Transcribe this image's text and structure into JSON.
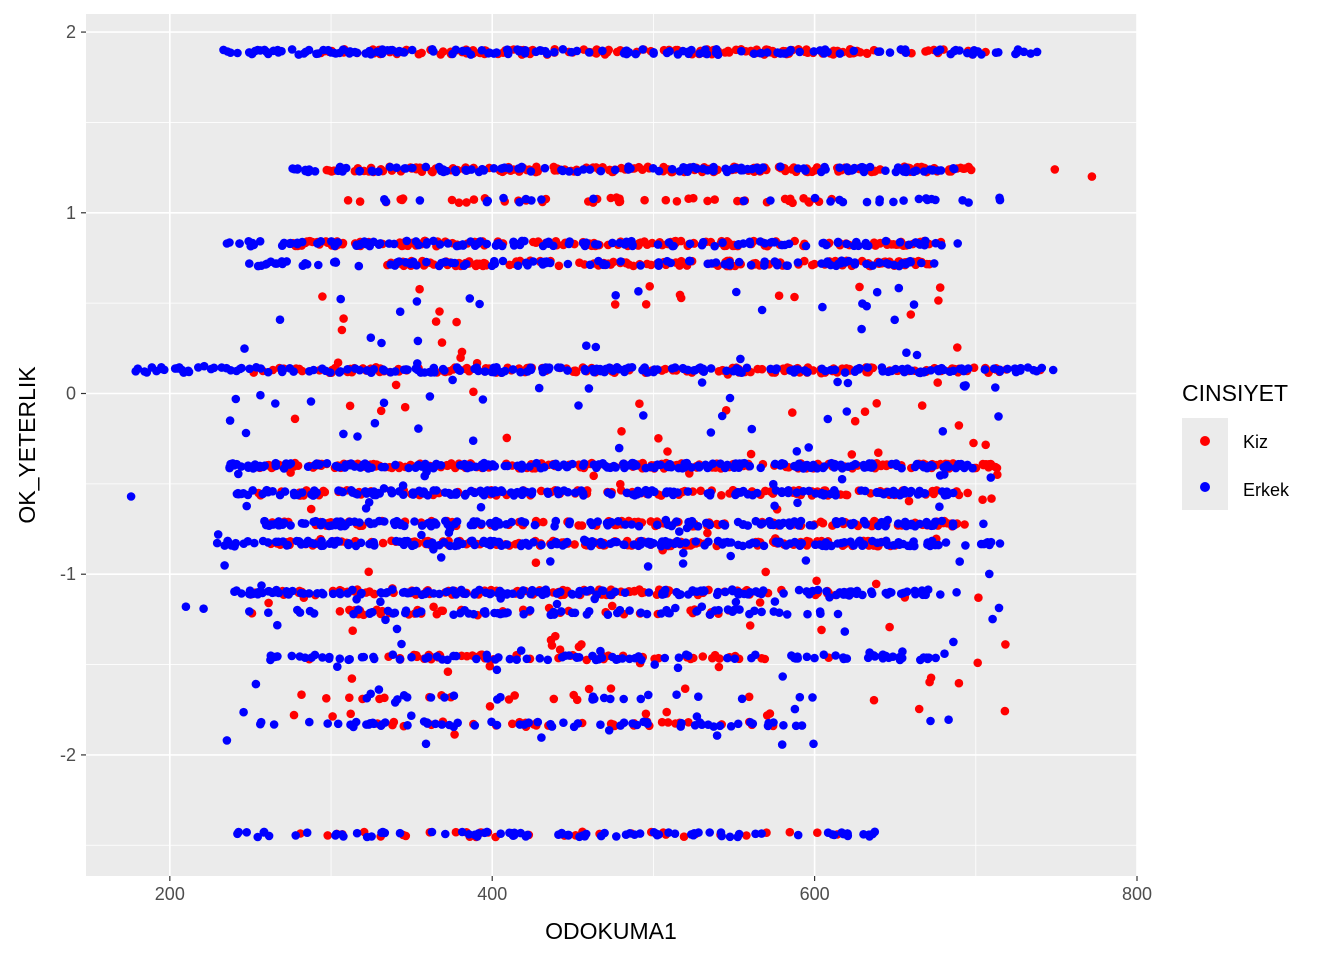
{
  "chart_data": {
    "type": "scatter",
    "title": "",
    "xlabel": "ODOKUMA1",
    "ylabel": "OK_YETERLIK",
    "xlim": [
      148,
      800
    ],
    "ylim": [
      -2.67,
      2.1
    ],
    "x_ticks": [
      200,
      400,
      600,
      800
    ],
    "x_tick_labels": [
      "200",
      "400",
      "600",
      "800"
    ],
    "y_ticks": [
      -2,
      -1,
      0,
      1,
      2
    ],
    "y_tick_labels": [
      "-2",
      "-1",
      "0",
      "1",
      "2"
    ],
    "grid": true,
    "legend": {
      "title": "CINSIYET",
      "placement": "right",
      "entries": [
        {
          "name": "Kiz",
          "color": "#ff0000"
        },
        {
          "name": "Erkek",
          "color": "#0000ff"
        }
      ]
    },
    "series": [
      {
        "name": "Kiz",
        "color": "#ff0000",
        "bands": [
          {
            "y": 1.89,
            "x_min": 290,
            "x_max": 708,
            "n": 150
          },
          {
            "y": 1.24,
            "x_min": 295,
            "x_max": 700,
            "n": 170
          },
          {
            "y": 1.07,
            "x_min": 310,
            "x_max": 620,
            "n": 45
          },
          {
            "y": 0.83,
            "x_min": 273,
            "x_max": 680,
            "n": 170
          },
          {
            "y": 0.72,
            "x_min": 330,
            "x_max": 675,
            "n": 140
          },
          {
            "y": 0.13,
            "x_min": 250,
            "x_max": 715,
            "n": 170
          },
          {
            "y": -0.4,
            "x_min": 255,
            "x_max": 718,
            "n": 200
          },
          {
            "y": -0.55,
            "x_min": 255,
            "x_max": 695,
            "n": 110
          },
          {
            "y": -0.72,
            "x_min": 260,
            "x_max": 695,
            "n": 110
          },
          {
            "y": -0.83,
            "x_min": 260,
            "x_max": 650,
            "n": 130
          },
          {
            "y": -1.1,
            "x_min": 245,
            "x_max": 630,
            "n": 110
          },
          {
            "y": -1.21,
            "x_min": 305,
            "x_max": 560,
            "n": 35
          },
          {
            "y": -1.46,
            "x_min": 320,
            "x_max": 575,
            "n": 45
          },
          {
            "y": -1.68,
            "x_min": 265,
            "x_max": 575,
            "n": 15
          },
          {
            "y": -1.83,
            "x_min": 320,
            "x_max": 575,
            "n": 30
          },
          {
            "y": -2.44,
            "x_min": 280,
            "x_max": 615,
            "n": 35
          }
        ],
        "scattered_range": {
          "x_min": 250,
          "x_max": 720,
          "y_min": -1.9,
          "y_max": 0.6,
          "n": 140
        },
        "points": [
          {
            "x": 749,
            "y": 1.24
          },
          {
            "x": 772,
            "y": 1.2
          },
          {
            "x": 740,
            "y": 0.13
          },
          {
            "x": 614,
            "y": -2.44
          },
          {
            "x": 710,
            "y": -0.4
          },
          {
            "x": 695,
            "y": -0.55
          }
        ]
      },
      {
        "name": "Erkek",
        "color": "#0000ff",
        "bands": [
          {
            "y": 1.89,
            "x_min": 229,
            "x_max": 738,
            "n": 150
          },
          {
            "y": 1.24,
            "x_min": 275,
            "x_max": 690,
            "n": 120
          },
          {
            "y": 1.07,
            "x_min": 330,
            "x_max": 715,
            "n": 30
          },
          {
            "y": 0.83,
            "x_min": 235,
            "x_max": 690,
            "n": 130
          },
          {
            "y": 0.72,
            "x_min": 245,
            "x_max": 675,
            "n": 110
          },
          {
            "y": 0.13,
            "x_min": 175,
            "x_max": 748,
            "n": 190
          },
          {
            "y": -0.4,
            "x_min": 235,
            "x_max": 700,
            "n": 210
          },
          {
            "y": -0.55,
            "x_min": 240,
            "x_max": 690,
            "n": 170
          },
          {
            "y": -0.72,
            "x_min": 255,
            "x_max": 690,
            "n": 150
          },
          {
            "y": -0.83,
            "x_min": 222,
            "x_max": 715,
            "n": 200
          },
          {
            "y": -1.1,
            "x_min": 240,
            "x_max": 690,
            "n": 160
          },
          {
            "y": -1.21,
            "x_min": 235,
            "x_max": 620,
            "n": 70
          },
          {
            "y": -1.46,
            "x_min": 255,
            "x_max": 680,
            "n": 90
          },
          {
            "y": -1.68,
            "x_min": 305,
            "x_max": 580,
            "n": 20
          },
          {
            "y": -1.83,
            "x_min": 255,
            "x_max": 600,
            "n": 60
          },
          {
            "y": -2.44,
            "x_min": 238,
            "x_max": 638,
            "n": 90
          }
        ],
        "scattered_range": {
          "x_min": 220,
          "x_max": 720,
          "y_min": -1.95,
          "y_max": 0.6,
          "n": 180
        },
        "points": [
          {
            "x": 176,
            "y": -0.57
          },
          {
            "x": 210,
            "y": -1.18
          },
          {
            "x": 748,
            "y": 0.13
          },
          {
            "x": 738,
            "y": 1.89
          },
          {
            "x": 715,
            "y": 1.07
          },
          {
            "x": 690,
            "y": -0.93
          },
          {
            "x": 715,
            "y": -0.83
          }
        ]
      }
    ]
  }
}
